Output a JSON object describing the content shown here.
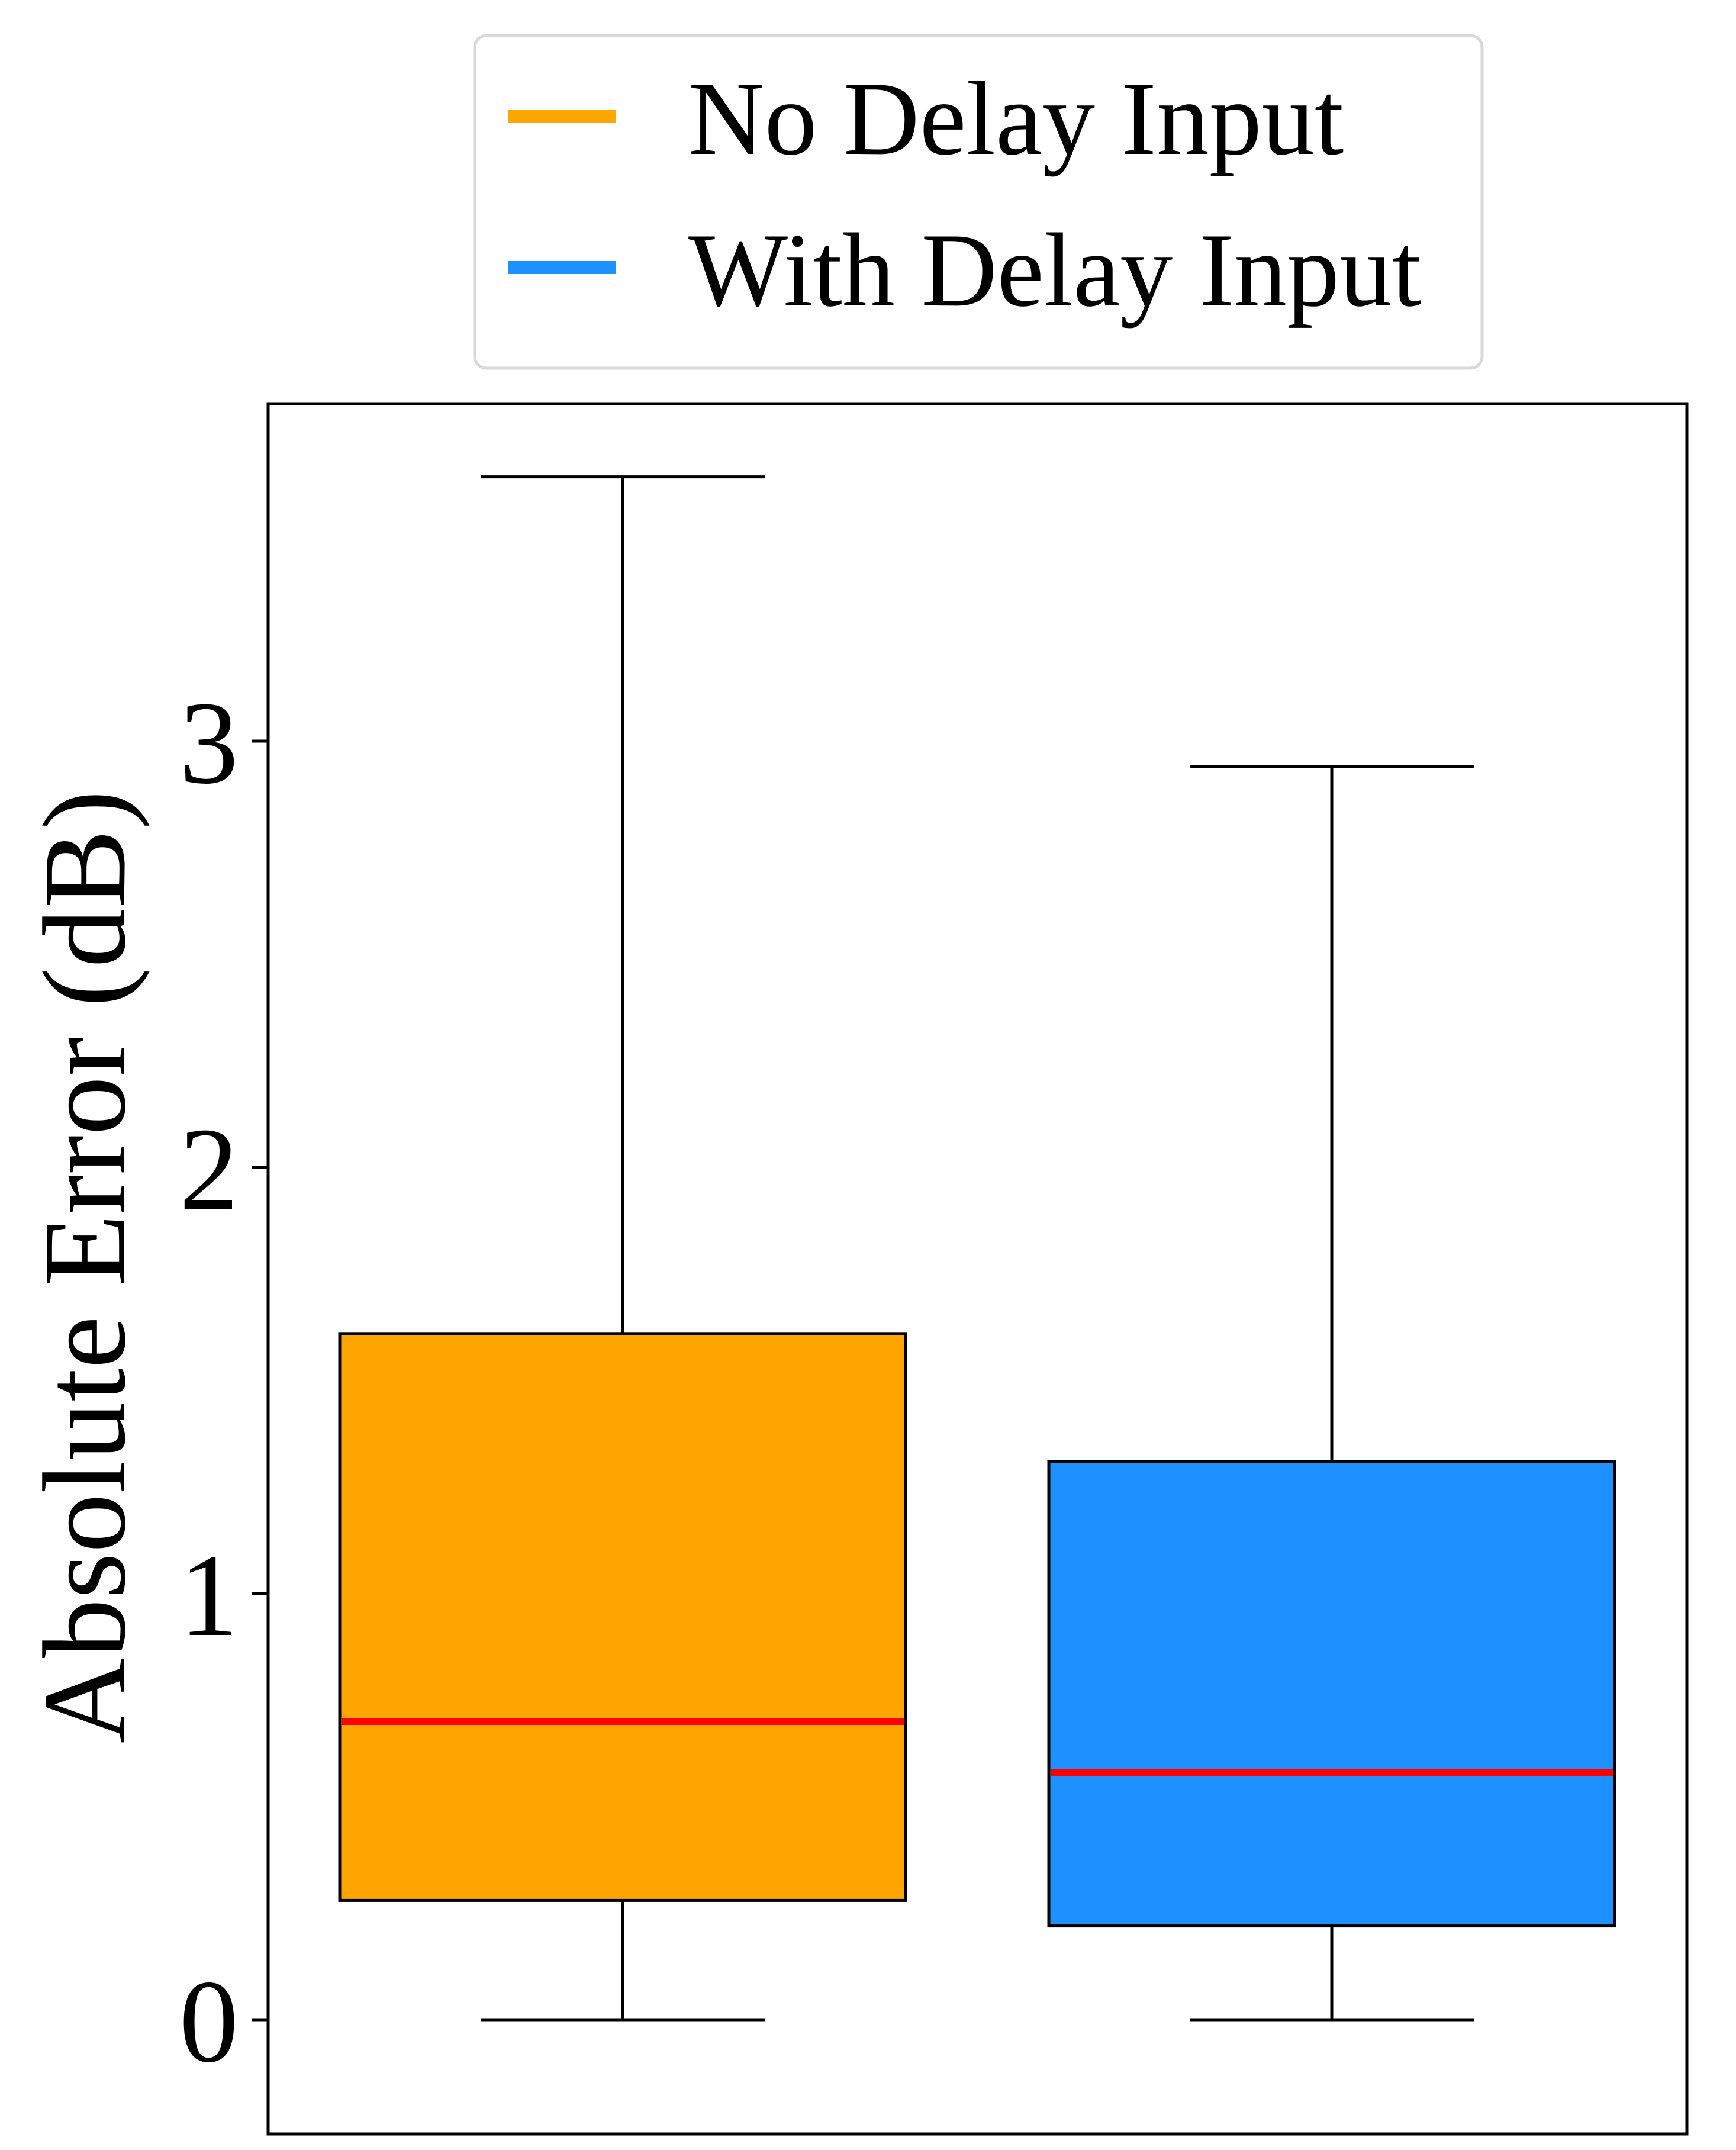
{
  "chart_data": {
    "type": "box",
    "title": "",
    "xlabel": "",
    "ylabel": "Absolute Error (dB)",
    "ylim": [
      -0.2,
      3.78
    ],
    "yticks": [
      0,
      1,
      2,
      3
    ],
    "grid": false,
    "legend_position": "top-center, outside plot",
    "median_color": "#ff0000",
    "series": [
      {
        "name": "No Delay Input",
        "color": "#ffa500",
        "whisker_low": 0.0,
        "q1": 0.28,
        "median": 0.7,
        "q3": 1.61,
        "whisker_high": 3.62
      },
      {
        "name": "With Delay Input",
        "color": "#1e90ff",
        "whisker_low": 0.0,
        "q1": 0.22,
        "median": 0.58,
        "q3": 1.31,
        "whisker_high": 2.94
      }
    ]
  }
}
